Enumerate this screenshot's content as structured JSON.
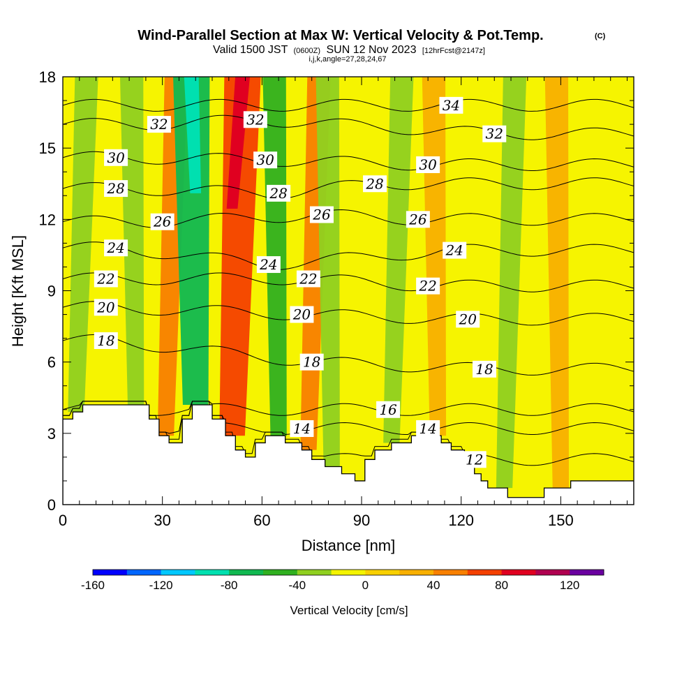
{
  "chart_data": {
    "type": "heatmap",
    "title": "Wind-Parallel Section at Max W: Vertical Velocity & Pot.Temp.",
    "title_mark": "(C)",
    "subtitle_prefix": "Valid 1500 JST",
    "subtitle_utc": "(0600Z)",
    "subtitle_date": "SUN 12 Nov 2023",
    "subtitle_fcst": "[12hrFcst@2147z]",
    "subtitle_2": "i,j,k,angle=27,28,24,67",
    "xlabel": "Distance [nm]",
    "ylabel": "Height [Kft MSL]",
    "xlim": [
      0,
      172
    ],
    "ylim": [
      0,
      18
    ],
    "x_ticks": [
      0,
      30,
      60,
      90,
      120,
      150
    ],
    "x_tick_labels": [
      "0",
      "30",
      "60",
      "90",
      "120",
      "150"
    ],
    "y_ticks": [
      0,
      3,
      6,
      9,
      12,
      15,
      18
    ],
    "y_tick_labels": [
      "0",
      "3",
      "6",
      "9",
      "12",
      "15",
      "18"
    ],
    "colorbar": {
      "title": "Vertical Velocity [cm/s]",
      "min": -160,
      "max": 140,
      "step": 20,
      "tick_values": [
        -160,
        -120,
        -80,
        -40,
        0,
        40,
        80,
        120
      ],
      "tick_labels": [
        "-160",
        "-120",
        "-80",
        "-40",
        "0",
        "40",
        "80",
        "120"
      ],
      "colors": [
        "#0000ff",
        "#0066ff",
        "#00c8ff",
        "#00e0b0",
        "#10b850",
        "#30b020",
        "#90d020",
        "#f4f400",
        "#f8d000",
        "#f8b000",
        "#f88000",
        "#f44000",
        "#e00020",
        "#b00050",
        "#6a00a0"
      ]
    },
    "vertical_velocity_bands": [
      {
        "x": 4,
        "w": -40,
        "note": "narrow downdraft strip"
      },
      {
        "x": 22,
        "w": -40
      },
      {
        "x": 31,
        "w": 50
      },
      {
        "x": 40,
        "w": -70
      },
      {
        "x": 51,
        "w": 70
      },
      {
        "x": 65,
        "w": -50
      },
      {
        "x": 74,
        "w": 40
      },
      {
        "x": 81,
        "w": -30
      },
      {
        "x": 99,
        "w": -30
      },
      {
        "x": 113,
        "w": 20
      },
      {
        "x": 133,
        "w": -30
      },
      {
        "x": 150,
        "w": 20
      }
    ],
    "potential_temperature_labels": [
      {
        "value": "34",
        "x": 117,
        "y": 16.8
      },
      {
        "value": "32",
        "x": 29,
        "y": 16.0
      },
      {
        "value": "32",
        "x": 58,
        "y": 16.2
      },
      {
        "value": "32",
        "x": 130,
        "y": 15.6
      },
      {
        "value": "30",
        "x": 16,
        "y": 14.6
      },
      {
        "value": "30",
        "x": 61,
        "y": 14.5
      },
      {
        "value": "30",
        "x": 110,
        "y": 14.3
      },
      {
        "value": "28",
        "x": 16,
        "y": 13.3
      },
      {
        "value": "28",
        "x": 65,
        "y": 13.1
      },
      {
        "value": "28",
        "x": 94,
        "y": 13.5
      },
      {
        "value": "26",
        "x": 30,
        "y": 11.9
      },
      {
        "value": "26",
        "x": 78,
        "y": 12.2
      },
      {
        "value": "26",
        "x": 107,
        "y": 12.0
      },
      {
        "value": "24",
        "x": 16,
        "y": 10.8
      },
      {
        "value": "24",
        "x": 62,
        "y": 10.1
      },
      {
        "value": "24",
        "x": 118,
        "y": 10.7
      },
      {
        "value": "22",
        "x": 13,
        "y": 9.5
      },
      {
        "value": "22",
        "x": 74,
        "y": 9.5
      },
      {
        "value": "22",
        "x": 110,
        "y": 9.2
      },
      {
        "value": "20",
        "x": 13,
        "y": 8.3
      },
      {
        "value": "20",
        "x": 72,
        "y": 8.0
      },
      {
        "value": "20",
        "x": 122,
        "y": 7.8
      },
      {
        "value": "18",
        "x": 13,
        "y": 6.9
      },
      {
        "value": "18",
        "x": 75,
        "y": 6.0
      },
      {
        "value": "18",
        "x": 127,
        "y": 5.7
      },
      {
        "value": "16",
        "x": 98,
        "y": 4.0
      },
      {
        "value": "14",
        "x": 72,
        "y": 3.2
      },
      {
        "value": "14",
        "x": 110,
        "y": 3.2
      },
      {
        "value": "12",
        "x": 124,
        "y": 1.9
      }
    ],
    "terrain": [
      {
        "x": 0,
        "h": 3.6
      },
      {
        "x": 3,
        "h": 3.9
      },
      {
        "x": 6,
        "h": 4.2
      },
      {
        "x": 26,
        "h": 3.6
      },
      {
        "x": 29,
        "h": 2.9
      },
      {
        "x": 32,
        "h": 2.6
      },
      {
        "x": 36,
        "h": 3.6
      },
      {
        "x": 39,
        "h": 4.2
      },
      {
        "x": 45,
        "h": 3.6
      },
      {
        "x": 49,
        "h": 2.9
      },
      {
        "x": 52,
        "h": 2.3
      },
      {
        "x": 55,
        "h": 2.0
      },
      {
        "x": 58,
        "h": 2.6
      },
      {
        "x": 61,
        "h": 2.9
      },
      {
        "x": 67,
        "h": 2.6
      },
      {
        "x": 72,
        "h": 2.3
      },
      {
        "x": 75,
        "h": 1.9
      },
      {
        "x": 79,
        "h": 1.6
      },
      {
        "x": 84,
        "h": 1.3
      },
      {
        "x": 88,
        "h": 1.0
      },
      {
        "x": 91,
        "h": 1.9
      },
      {
        "x": 94,
        "h": 2.3
      },
      {
        "x": 99,
        "h": 2.6
      },
      {
        "x": 105,
        "h": 2.9
      },
      {
        "x": 114,
        "h": 2.6
      },
      {
        "x": 117,
        "h": 2.3
      },
      {
        "x": 121,
        "h": 1.9
      },
      {
        "x": 124,
        "h": 1.3
      },
      {
        "x": 126,
        "h": 1.0
      },
      {
        "x": 128,
        "h": 0.7
      },
      {
        "x": 134,
        "h": 0.3
      },
      {
        "x": 145,
        "h": 0.7
      },
      {
        "x": 153,
        "h": 1.0
      },
      {
        "x": 172,
        "h": 1.0
      }
    ]
  }
}
